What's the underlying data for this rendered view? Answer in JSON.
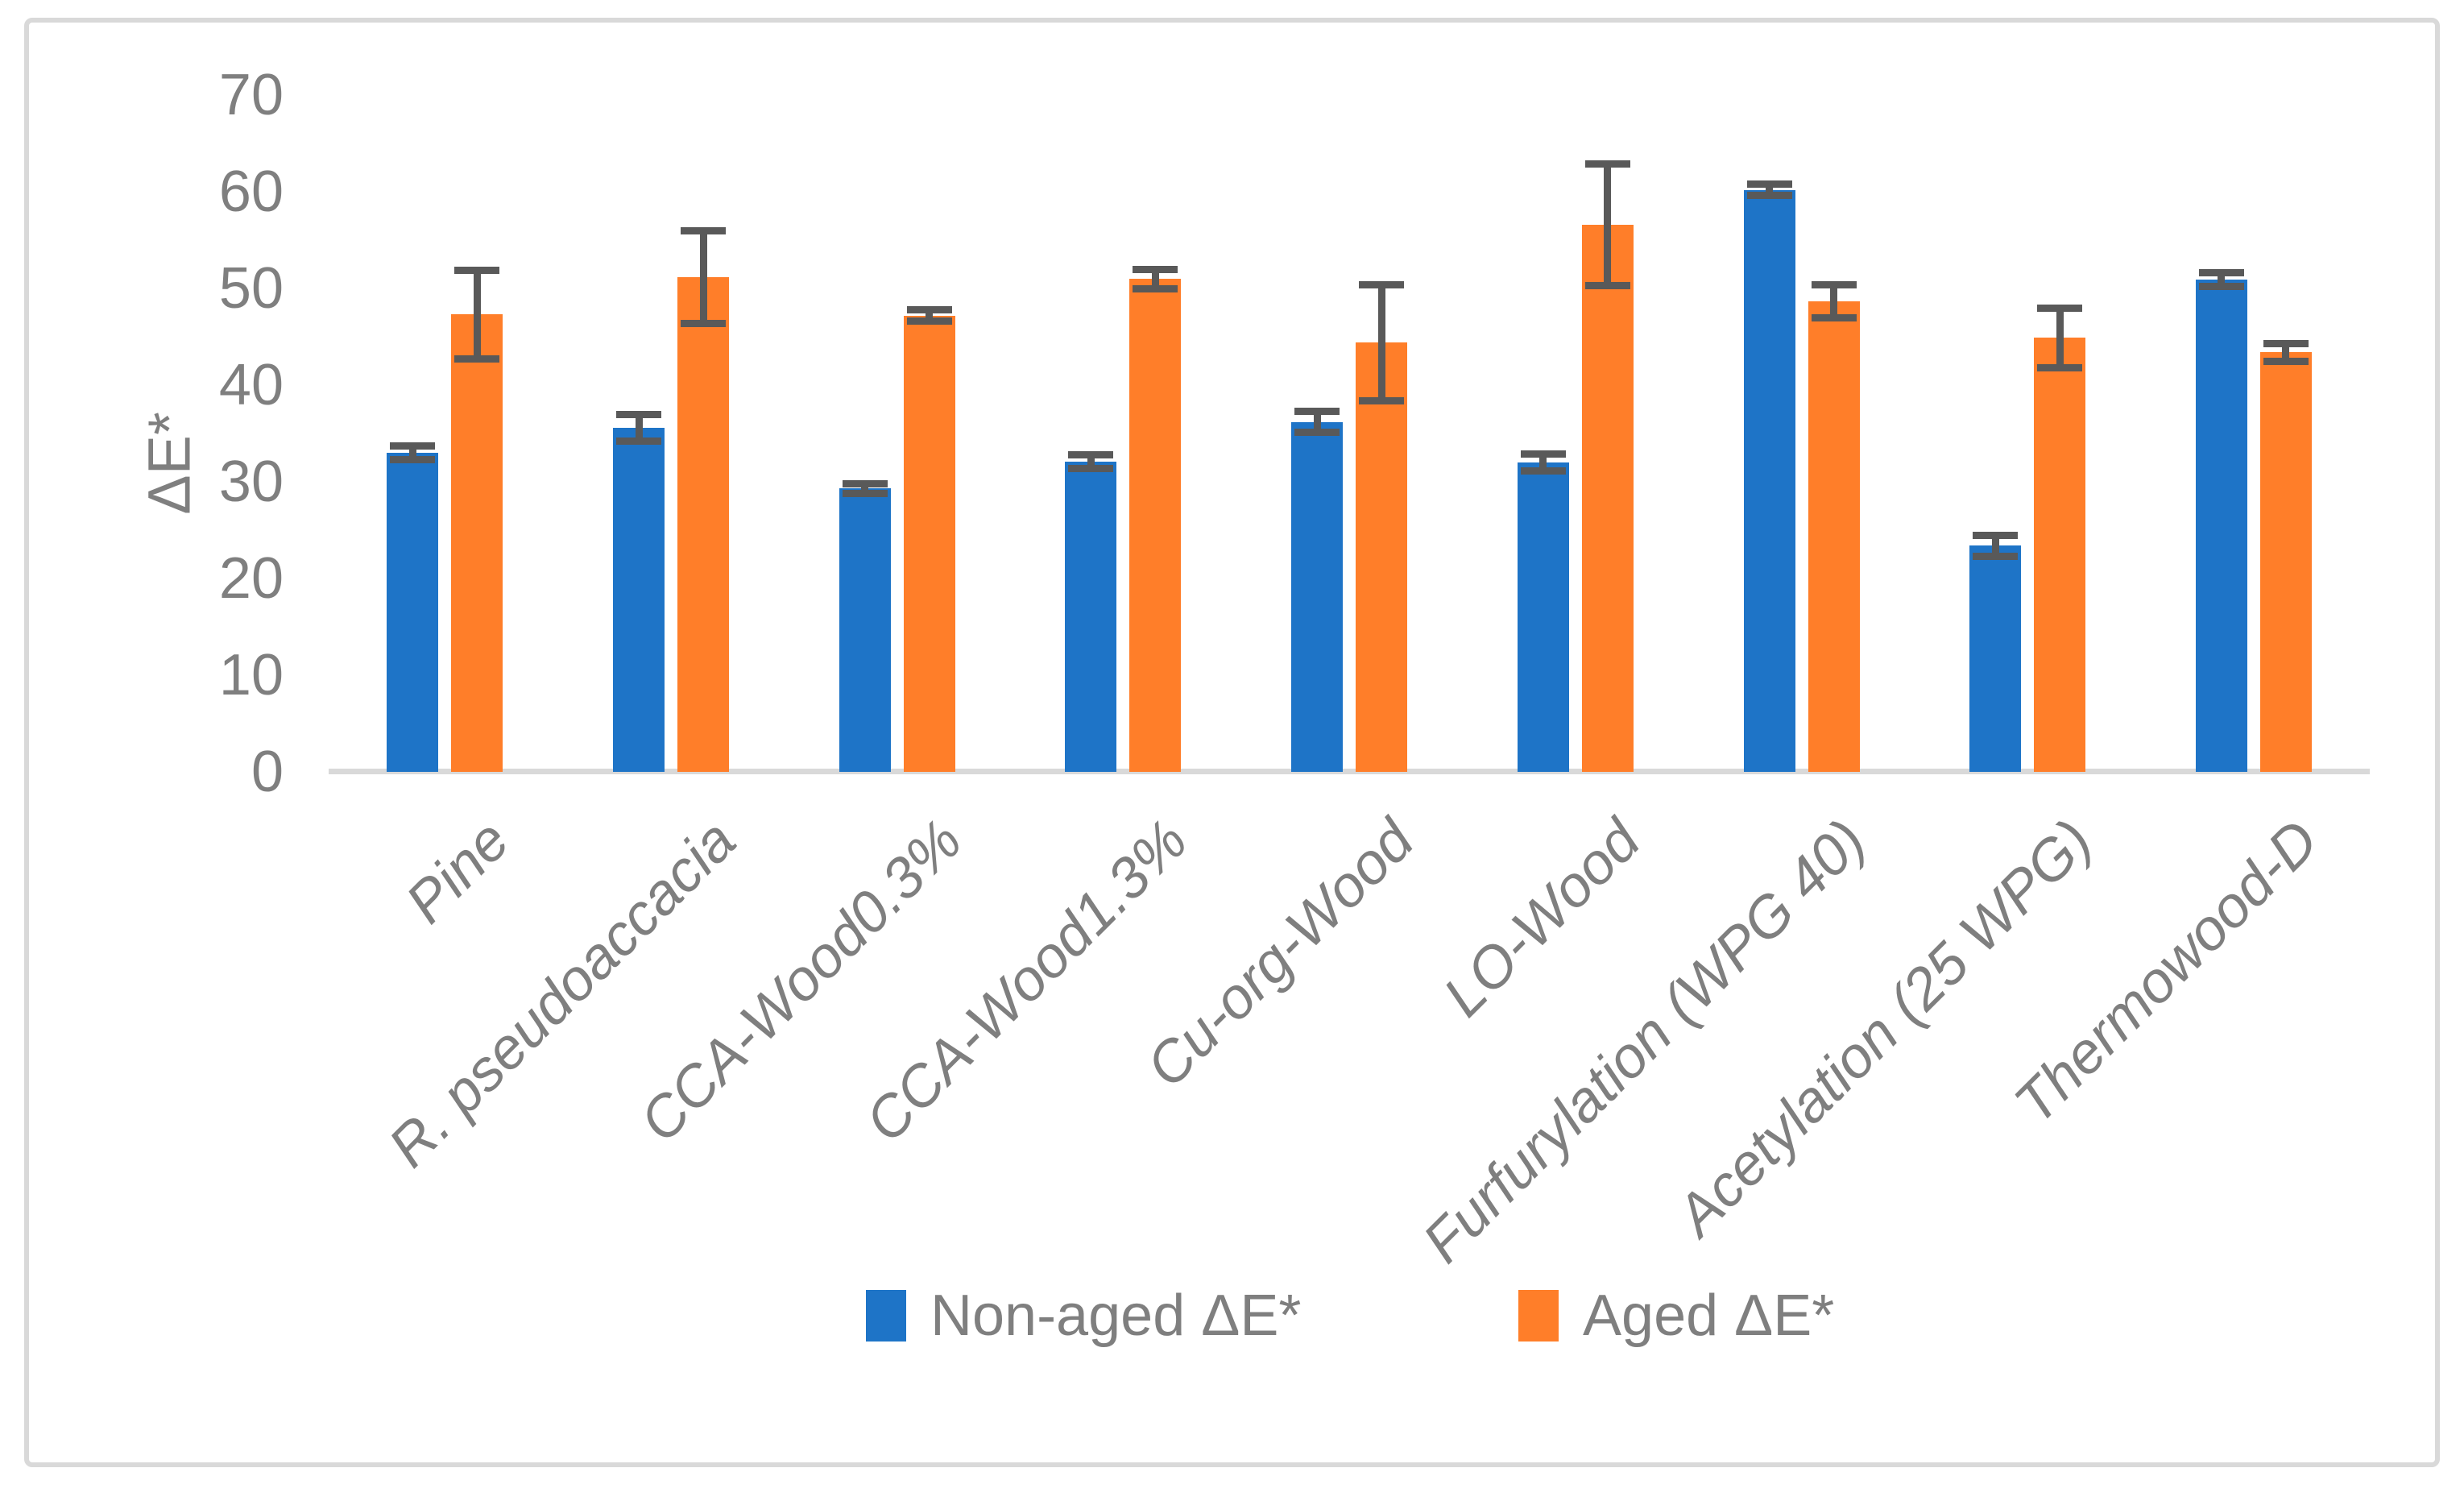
{
  "chart_data": {
    "type": "bar",
    "title": "",
    "ylabel": "ΔE*",
    "xlabel": "",
    "categories": [
      "Pine",
      "R. pseudoaccacia",
      "CCA-Wood0.3%",
      "CCA-Wood1.3%",
      "Cu-org-Wood",
      "LO-Wood",
      "Furfurylation (WPG 40)",
      "Acetylation (25 WPG)",
      "Thermowood-D"
    ],
    "series": [
      {
        "name": "Non-aged ΔE*",
        "color": "#1e74c7",
        "values": [
          33.0,
          35.6,
          29.3,
          32.1,
          36.2,
          32.0,
          60.2,
          23.4,
          50.9
        ],
        "errors": [
          0.7,
          1.4,
          0.5,
          0.7,
          1.1,
          0.9,
          0.6,
          1.1,
          0.7
        ]
      },
      {
        "name": "Aged ΔE*",
        "color": "#ff7e29",
        "values": [
          47.3,
          51.2,
          47.2,
          51.0,
          44.4,
          56.6,
          48.7,
          44.9,
          43.4
        ],
        "errors": [
          4.6,
          4.8,
          0.6,
          1.0,
          6.0,
          6.3,
          1.7,
          3.1,
          0.9
        ]
      }
    ],
    "ylim": [
      0,
      70
    ],
    "yticks": [
      0,
      10,
      20,
      30,
      40,
      50,
      60,
      70
    ],
    "grid": false,
    "legend_position": "bottom",
    "error_bar_color": "#595959",
    "axis_line_color": "#d9d9d9",
    "text_color": "#7f7f7f",
    "background_color": "#ffffff",
    "border_color": "#d9d9d9"
  }
}
